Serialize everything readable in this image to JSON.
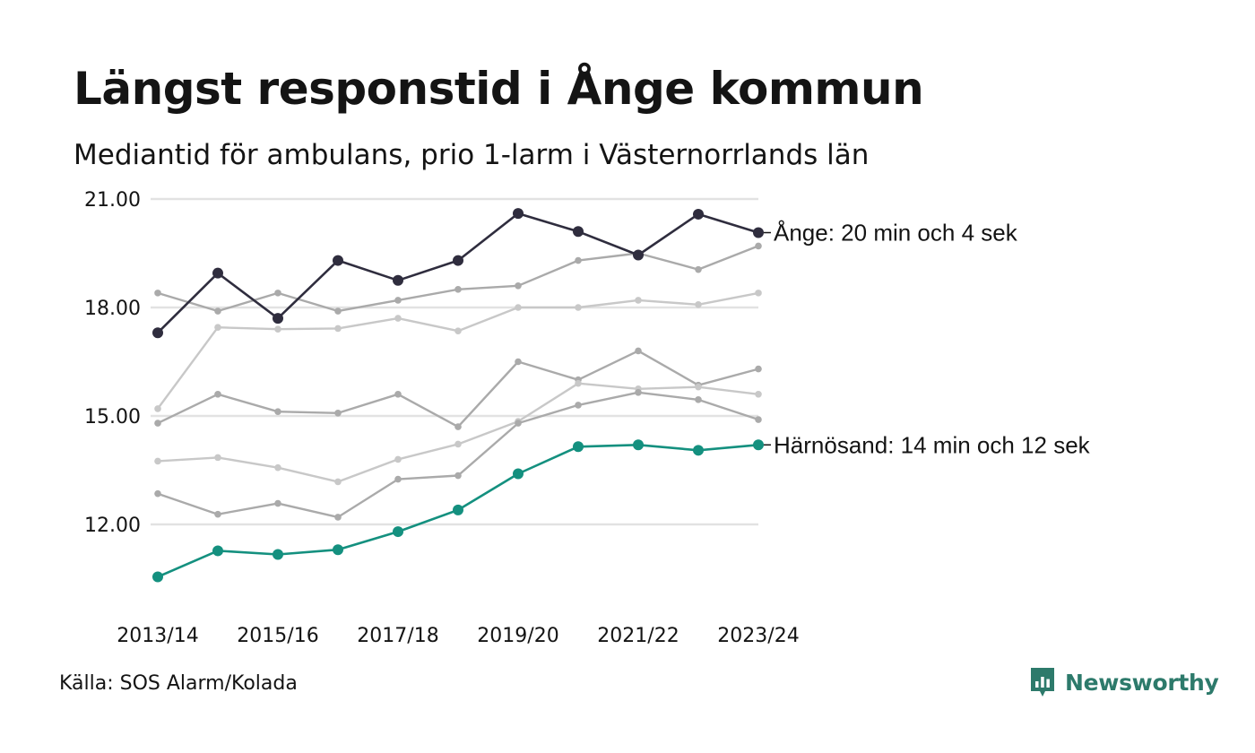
{
  "header": {
    "title": "Längst responstid i Ånge kommun",
    "subtitle": "Mediantid för ambulans, prio 1-larm i Västernorrlands län"
  },
  "footer": {
    "source": "Källa: SOS Alarm/Kolada",
    "brand": "Newsworthy"
  },
  "colors": {
    "highlight_dark": "#2f2d3e",
    "highlight_teal": "#14907f",
    "gridline": "#e2e2e2",
    "background_dark": "#aaaaaa",
    "background_light": "#c8c8c8",
    "brand": "#2d7a6b"
  },
  "chart_data": {
    "type": "line",
    "x": [
      "2013/14",
      "2014/15",
      "2015/16",
      "2016/17",
      "2017/18",
      "2018/19",
      "2019/20",
      "2020/21",
      "2021/22",
      "2022/23",
      "2023/24"
    ],
    "x_tick_labels": [
      "2013/14",
      "2015/16",
      "2017/18",
      "2019/20",
      "2021/22",
      "2023/24"
    ],
    "y_ticks": [
      "21.00",
      "18.00",
      "15.00",
      "12.00"
    ],
    "y_tick_values": [
      21,
      18,
      15,
      12
    ],
    "ylim": [
      9.5,
      21.5
    ],
    "grid": true,
    "legend": "none",
    "series": [
      {
        "values": [
          18.4,
          17.9,
          18.4,
          17.9,
          18.2,
          18.5,
          18.6,
          19.3,
          19.5,
          19.05,
          19.7
        ],
        "color": "#aaaaaa",
        "highlight": false
      },
      {
        "values": [
          15.2,
          17.45,
          17.4,
          17.42,
          17.7,
          17.35,
          18.0,
          18.0,
          18.2,
          18.08,
          18.4
        ],
        "color": "#c8c8c8",
        "highlight": false
      },
      {
        "values": [
          14.8,
          15.6,
          15.12,
          15.08,
          15.6,
          14.7,
          16.5,
          16.0,
          16.8,
          15.85,
          16.3
        ],
        "color": "#aaaaaa",
        "highlight": false
      },
      {
        "values": [
          13.75,
          13.85,
          13.57,
          13.18,
          13.8,
          14.22,
          14.85,
          15.9,
          15.75,
          15.8,
          15.6
        ],
        "color": "#c8c8c8",
        "highlight": false
      },
      {
        "values": [
          12.85,
          12.28,
          12.58,
          12.2,
          13.25,
          13.35,
          14.8,
          15.3,
          15.65,
          15.45,
          14.9
        ],
        "color": "#aaaaaa",
        "highlight": false
      },
      {
        "name": "Ånge",
        "values": [
          17.3,
          18.95,
          17.7,
          19.3,
          18.75,
          19.3,
          20.6,
          20.1,
          19.45,
          20.58,
          20.07
        ],
        "color": "#2f2d3e",
        "highlight": true,
        "label": "Ånge: 20 min och 4 sek"
      },
      {
        "name": "Härnösand",
        "values": [
          10.55,
          11.27,
          11.17,
          11.3,
          11.8,
          12.4,
          13.4,
          14.15,
          14.2,
          14.05,
          14.2
        ],
        "color": "#14907f",
        "highlight": true,
        "label": "Härnösand: 14 min och 12 sek"
      }
    ]
  }
}
